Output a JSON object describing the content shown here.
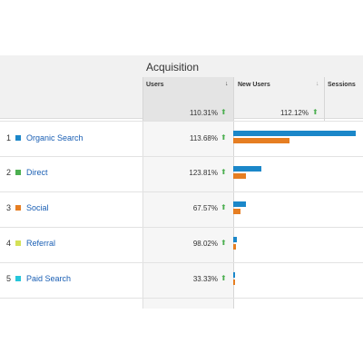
{
  "header": {
    "group_title": "Acquisition",
    "columns": [
      {
        "label": "Users",
        "sort_icon": "arrow-down-icon"
      },
      {
        "label": "New Users",
        "sort_icon": "arrow-down-icon"
      },
      {
        "label": "Sessions"
      }
    ]
  },
  "summary": {
    "users_change": "110.31%",
    "new_users_change": "112.12%"
  },
  "rows": [
    {
      "rank": "1",
      "channel": "Organic Search",
      "color": "#1b87c9",
      "users_change": "113.68%",
      "bar_blue_fraction": 1.0,
      "bar_orange_fraction": 0.46
    },
    {
      "rank": "2",
      "channel": "Direct",
      "color": "#4caf50",
      "users_change": "123.81%",
      "bar_blue_fraction": 0.23,
      "bar_orange_fraction": 0.1
    },
    {
      "rank": "3",
      "channel": "Social",
      "color": "#e67e22",
      "users_change": "67.57%",
      "bar_blue_fraction": 0.1,
      "bar_orange_fraction": 0.06
    },
    {
      "rank": "4",
      "channel": "Referral",
      "color": "#d4e157",
      "users_change": "98.02%",
      "bar_blue_fraction": 0.03,
      "bar_orange_fraction": 0.02
    },
    {
      "rank": "5",
      "channel": "Paid Search",
      "color": "#26c6da",
      "users_change": "33.33%",
      "bar_blue_fraction": 0.015,
      "bar_orange_fraction": 0.01
    }
  ],
  "colors": {
    "new_users_bar": "#1b87c9",
    "sessions_bar": "#e67e22",
    "trend_up": "#4caf50",
    "link": "#1a5fb4"
  }
}
